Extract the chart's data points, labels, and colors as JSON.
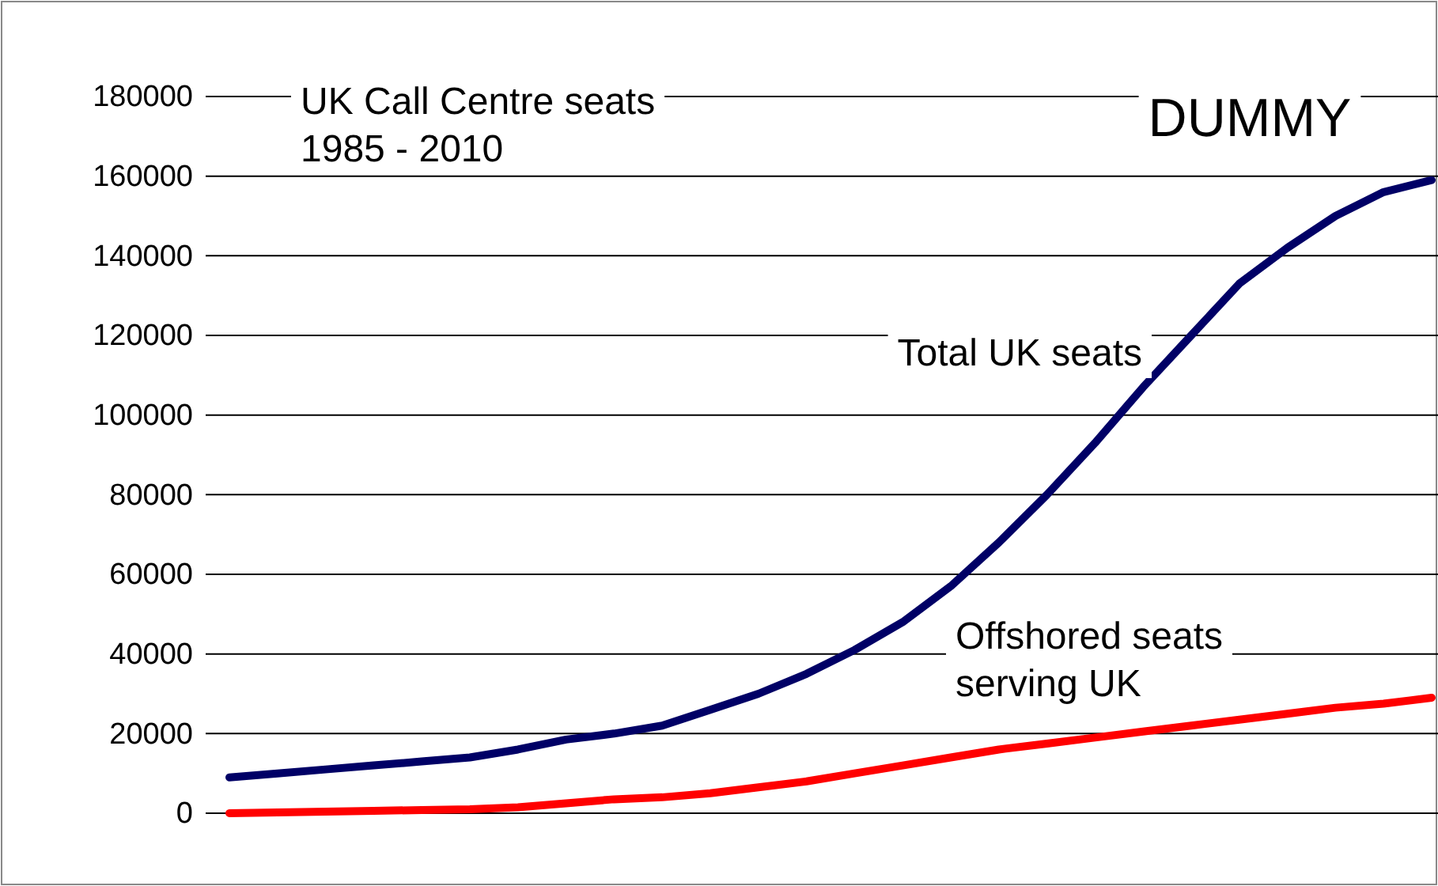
{
  "chart_data": {
    "type": "line",
    "title": "UK Call Centre seats 1985 - 2010",
    "categories": [
      null,
      null,
      null,
      null,
      null,
      null,
      null,
      null,
      null,
      null,
      null,
      null,
      null,
      null,
      null,
      null,
      null,
      null,
      null,
      null,
      null,
      null,
      null,
      null,
      null,
      null
    ],
    "series": [
      {
        "name": "Total UK seats",
        "color": "#000066",
        "values": [
          9000,
          10000,
          11000,
          12000,
          13000,
          14000,
          16000,
          18500,
          20000,
          22000,
          26000,
          30000,
          35000,
          41000,
          48000,
          57000,
          68000,
          80000,
          93000,
          107000,
          120000,
          133000,
          142000,
          150000,
          156000,
          159000
        ]
      },
      {
        "name": "Offshored seats serving UK",
        "color": "#ff0000",
        "values": [
          0,
          200,
          400,
          600,
          800,
          1000,
          1500,
          2500,
          3500,
          4000,
          5000,
          6500,
          8000,
          10000,
          12000,
          14000,
          16000,
          17500,
          19000,
          20500,
          22000,
          23500,
          25000,
          26500,
          27500,
          29000
        ]
      }
    ],
    "ylim": [
      0,
      180000
    ],
    "yticks": [
      0,
      20000,
      40000,
      60000,
      80000,
      100000,
      120000,
      140000,
      160000,
      180000
    ],
    "grid": "y",
    "legend": false,
    "annotations": [
      "DUMMY"
    ]
  }
}
